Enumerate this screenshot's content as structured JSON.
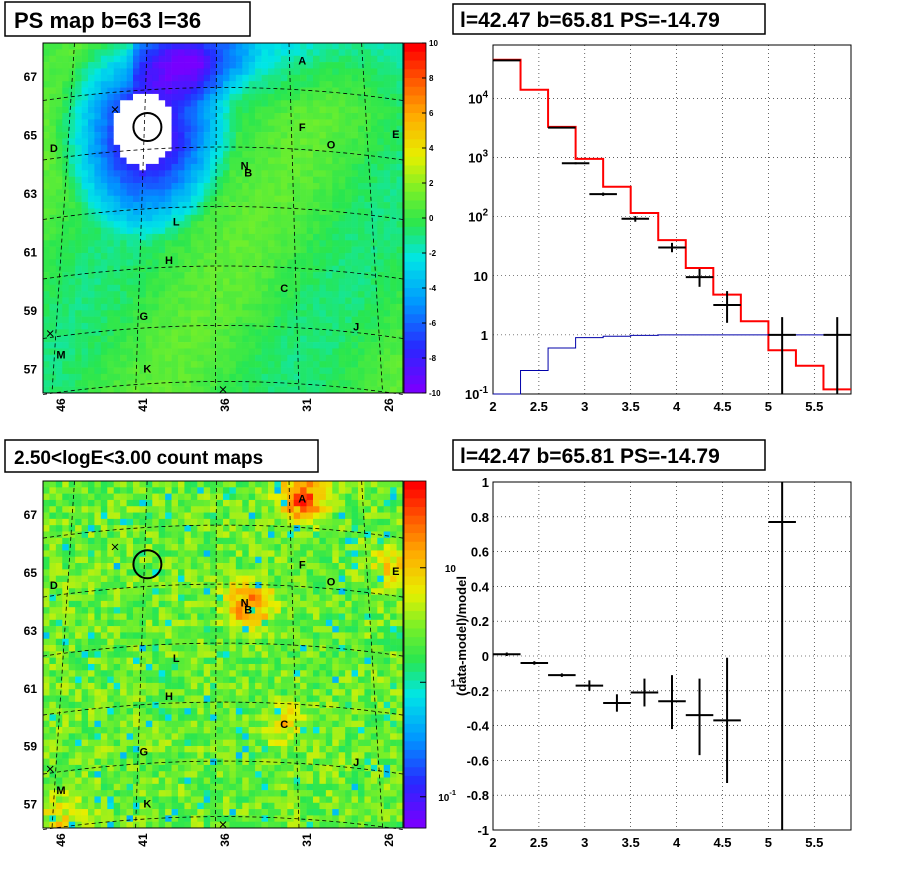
{
  "panels": {
    "top_left_title": "PS map b=63 l=36",
    "top_right_title": "l=42.47 b=65.81 PS=-14.79",
    "bottom_left_title": "2.50<logE<3.00 count maps",
    "bottom_right_title": "l=42.47 b=65.81 PS=-14.79"
  },
  "chart_data": [
    {
      "type": "heatmap",
      "title": "PS map b=63 l=36",
      "x_ticks": [
        "46",
        "41",
        "36",
        "31",
        "26"
      ],
      "y_ticks": [
        "67",
        "65",
        "63",
        "61",
        "59",
        "57"
      ],
      "colorbar_ticks": [
        "10",
        "8",
        "6",
        "4",
        "2",
        "0",
        "-2",
        "-4",
        "-6",
        "-8",
        "-10"
      ],
      "colorbar_range": [
        -10,
        10
      ],
      "source_labels": [
        "A",
        "B",
        "C",
        "D",
        "E",
        "F",
        "G",
        "H",
        "J",
        "K",
        "L",
        "M",
        "N",
        "O"
      ],
      "colors": {
        "high": "#ff0000",
        "mid": "#33dd33",
        "low": "#7700ff",
        "saturated": "#ffffff"
      }
    },
    {
      "type": "line",
      "title": "l=42.47 b=65.81 PS=-14.79",
      "log_y": true,
      "xlim": [
        2,
        5.9
      ],
      "ylim": [
        0.1,
        80000
      ],
      "x_ticks": [
        "2",
        "2.5",
        "3",
        "3.5",
        "4",
        "4.5",
        "5",
        "5.5"
      ],
      "y_ticks": [
        "10^-1",
        "1",
        "10",
        "10^2",
        "10^3",
        "10^4"
      ],
      "bin_edges": [
        2.0,
        2.3,
        2.6,
        2.9,
        3.2,
        3.5,
        3.8,
        4.1,
        4.4,
        4.7,
        5.0,
        5.3,
        5.6,
        5.9
      ],
      "series": [
        {
          "values": [
            45000,
            14000,
            3300,
            950,
            320,
            115,
            40,
            13.5,
            4.8,
            1.7,
            0.55,
            0.3,
            0.12
          ],
          "color": "#ff0000"
        },
        {
          "values": [
            0.1,
            0.25,
            0.6,
            0.9,
            0.95,
            0.98,
            1.0,
            1.0,
            1.0,
            1.0,
            1.0,
            1.0,
            1.0
          ],
          "color": "#0000aa"
        }
      ],
      "data_points": [
        {
          "x": 2.15,
          "y": 44000,
          "ylo": 43000,
          "yhi": 45000,
          "xerr": 0.15
        },
        {
          "x": 2.75,
          "y": 3200,
          "ylo": 3100,
          "yhi": 3300,
          "xerr": 0.15
        },
        {
          "x": 2.9,
          "y": 800,
          "ylo": 770,
          "yhi": 830,
          "xerr": 0.15
        },
        {
          "x": 3.2,
          "y": 240,
          "ylo": 225,
          "yhi": 255,
          "xerr": 0.15
        },
        {
          "x": 3.55,
          "y": 92,
          "ylo": 82,
          "yhi": 102,
          "xerr": 0.15
        },
        {
          "x": 3.95,
          "y": 30,
          "ylo": 25,
          "yhi": 36,
          "xerr": 0.15
        },
        {
          "x": 4.25,
          "y": 9.5,
          "ylo": 6.5,
          "yhi": 13,
          "xerr": 0.15
        },
        {
          "x": 4.55,
          "y": 3.2,
          "ylo": 1.6,
          "yhi": 5.5,
          "xerr": 0.15
        },
        {
          "x": 5.15,
          "y": 1.0,
          "ylo": 0.1,
          "yhi": 2.0,
          "xerr": 0.15
        },
        {
          "x": 5.75,
          "y": 1.0,
          "ylo": 0.1,
          "yhi": 2.0,
          "xerr": 0.15
        }
      ]
    },
    {
      "type": "heatmap",
      "title": "2.50<logE<3.00 count maps",
      "x_ticks": [
        "46",
        "41",
        "36",
        "31",
        "26"
      ],
      "y_ticks": [
        "67",
        "65",
        "63",
        "61",
        "59",
        "57"
      ],
      "colorbar_ticks": [
        "10",
        "1",
        "10^-1"
      ],
      "source_labels": [
        "A",
        "B",
        "C",
        "D",
        "E",
        "F",
        "G",
        "H",
        "J",
        "K",
        "L",
        "M",
        "N",
        "O"
      ]
    },
    {
      "type": "scatter",
      "title": "l=42.47 b=65.81 PS=-14.79",
      "ylabel": "(data-model)/model",
      "xlim": [
        2,
        5.9
      ],
      "ylim": [
        -1,
        1
      ],
      "x_ticks": [
        "2",
        "2.5",
        "3",
        "3.5",
        "4",
        "4.5",
        "5",
        "5.5"
      ],
      "y_ticks": [
        "1",
        "0.8",
        "0.6",
        "0.4",
        "0.2",
        "0",
        "-0.2",
        "-0.4",
        "-0.6",
        "-0.8",
        "-1"
      ],
      "data_points": [
        {
          "x": 2.15,
          "y": 0.01,
          "ylo": 0.0,
          "yhi": 0.02,
          "xerr": 0.15
        },
        {
          "x": 2.45,
          "y": -0.04,
          "ylo": -0.05,
          "yhi": -0.03,
          "xerr": 0.15
        },
        {
          "x": 2.75,
          "y": -0.11,
          "ylo": -0.12,
          "yhi": -0.1,
          "xerr": 0.15
        },
        {
          "x": 3.05,
          "y": -0.17,
          "ylo": -0.2,
          "yhi": -0.14,
          "xerr": 0.15
        },
        {
          "x": 3.35,
          "y": -0.27,
          "ylo": -0.32,
          "yhi": -0.22,
          "xerr": 0.15
        },
        {
          "x": 3.65,
          "y": -0.21,
          "ylo": -0.29,
          "yhi": -0.13,
          "xerr": 0.15
        },
        {
          "x": 3.95,
          "y": -0.26,
          "ylo": -0.42,
          "yhi": -0.11,
          "xerr": 0.15
        },
        {
          "x": 4.25,
          "y": -0.34,
          "ylo": -0.57,
          "yhi": -0.13,
          "xerr": 0.15
        },
        {
          "x": 4.55,
          "y": -0.37,
          "ylo": -0.73,
          "yhi": -0.01,
          "xerr": 0.15
        },
        {
          "x": 5.15,
          "y": 0.77,
          "ylo": -1.0,
          "yhi": 1.0,
          "xerr": 0.15
        }
      ]
    }
  ]
}
